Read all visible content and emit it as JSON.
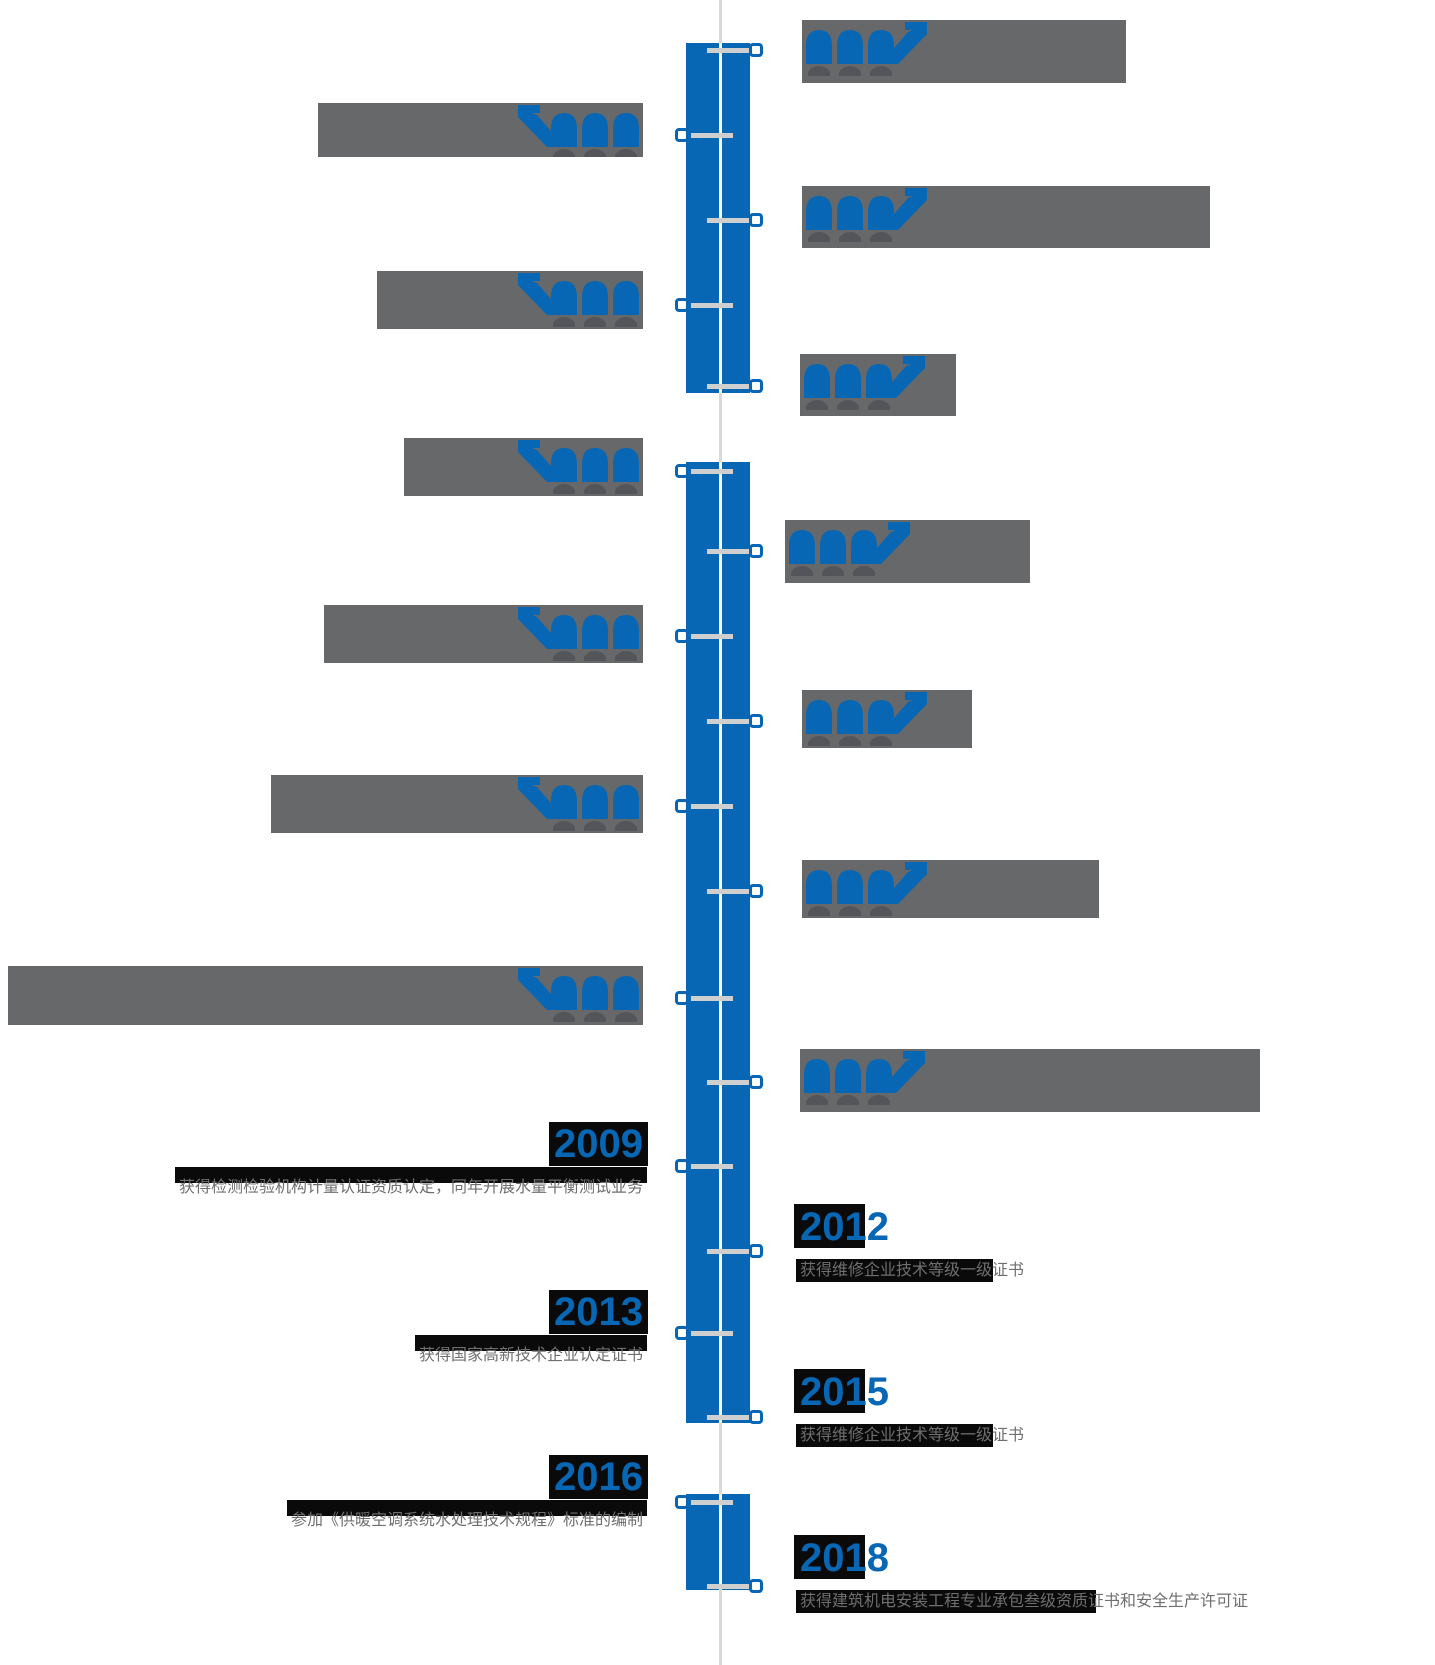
{
  "page": {
    "background": "#ffffff",
    "type": "company-history-timeline"
  },
  "palette": {
    "accent_blue": "#0767b4",
    "masked_block_gray": "#67686a",
    "description_text_gray": "#6f6f70",
    "selection_band_black": "#0a0a0a",
    "center_line_gray": "#d9d9d9",
    "tick_gray": "#cfcfcf"
  },
  "timeline": {
    "items": [
      {
        "side": "right",
        "masked": true,
        "year": "",
        "description": ""
      },
      {
        "side": "left",
        "masked": true,
        "year": "",
        "description": ""
      },
      {
        "side": "right",
        "masked": true,
        "year": "",
        "description": ""
      },
      {
        "side": "left",
        "masked": true,
        "year": "",
        "description": ""
      },
      {
        "side": "right",
        "masked": true,
        "year": "",
        "description": ""
      },
      {
        "side": "left",
        "masked": true,
        "year": "",
        "description": ""
      },
      {
        "side": "right",
        "masked": true,
        "year": "",
        "description": ""
      },
      {
        "side": "left",
        "masked": true,
        "year": "",
        "description": ""
      },
      {
        "side": "right",
        "masked": true,
        "year": "",
        "description": ""
      },
      {
        "side": "left",
        "masked": true,
        "year": "",
        "description": ""
      },
      {
        "side": "right",
        "masked": true,
        "year": "",
        "description": ""
      },
      {
        "side": "left",
        "masked": true,
        "year": "",
        "description": ""
      },
      {
        "side": "right",
        "masked": true,
        "year": "",
        "description": ""
      },
      {
        "side": "left",
        "masked": false,
        "year": "2009",
        "description": "获得检测检验机构计量认证资质认定，同年开展水量平衡测试业务"
      },
      {
        "side": "right",
        "masked": false,
        "year": "2012",
        "description": "获得维修企业技术等级一级证书"
      },
      {
        "side": "left",
        "masked": false,
        "year": "2013",
        "description": "获得国家高新技术企业认定证书"
      },
      {
        "side": "right",
        "masked": false,
        "year": "2015",
        "description": "获得维修企业技术等级一级证书"
      },
      {
        "side": "left",
        "masked": false,
        "year": "2016",
        "description": "参加《供暖空调系统水处理技术规程》标准的编制"
      },
      {
        "side": "right",
        "masked": false,
        "year": "2018",
        "description": "获得建筑机电安装工程专业承包叁级资质证书和安全生产许可证"
      }
    ]
  }
}
